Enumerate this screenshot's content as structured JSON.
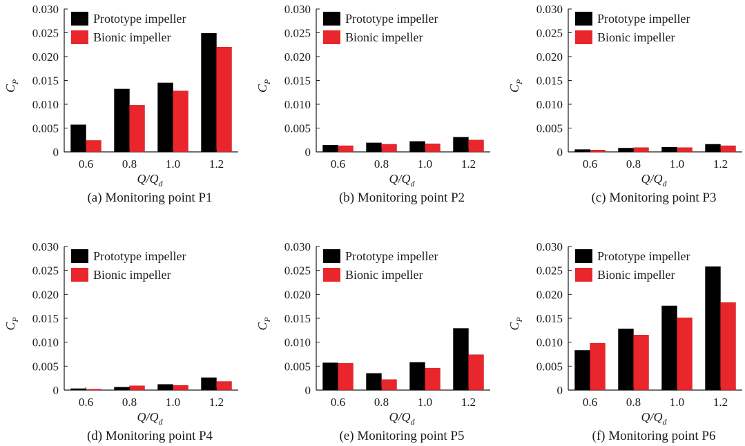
{
  "colors": {
    "prototype": "#000000",
    "bionic": "#e8262b",
    "axis": "#1a1a1a"
  },
  "chart_data": [
    {
      "type": "bar",
      "caption": "(a) Monitoring point P1",
      "xlabel": {
        "main": "Q/Q",
        "sub": "d"
      },
      "ylabel": {
        "main": "C",
        "sub": "P"
      },
      "categories": [
        "0.6",
        "0.8",
        "1.0",
        "1.2"
      ],
      "yticks": [
        "0",
        "0.005",
        "0.010",
        "0.015",
        "0.020",
        "0.025",
        "0.030"
      ],
      "ylim": [
        0,
        0.03
      ],
      "legend": "top-left",
      "grid": false,
      "series": [
        {
          "name": "Prototype impeller",
          "values": [
            0.0057,
            0.0132,
            0.0145,
            0.0249
          ]
        },
        {
          "name": "Bionic impeller",
          "values": [
            0.0024,
            0.0098,
            0.0128,
            0.022
          ]
        }
      ]
    },
    {
      "type": "bar",
      "caption": "(b) Monitoring point P2",
      "xlabel": {
        "main": "Q/Q",
        "sub": "d"
      },
      "ylabel": {
        "main": "C",
        "sub": "P"
      },
      "categories": [
        "0.6",
        "0.8",
        "1.0",
        "1.2"
      ],
      "yticks": [
        "0",
        "0.005",
        "0.010",
        "0.015",
        "0.020",
        "0.025",
        "0.030"
      ],
      "ylim": [
        0,
        0.03
      ],
      "legend": "top-left",
      "grid": false,
      "series": [
        {
          "name": "Prototype impeller",
          "values": [
            0.0014,
            0.0019,
            0.0022,
            0.0031
          ]
        },
        {
          "name": "Bionic impeller",
          "values": [
            0.0013,
            0.0016,
            0.0017,
            0.0025
          ]
        }
      ]
    },
    {
      "type": "bar",
      "caption": "(c) Monitoring point P3",
      "xlabel": {
        "main": "Q/Q",
        "sub": "d"
      },
      "ylabel": {
        "main": "C",
        "sub": "P"
      },
      "categories": [
        "0.6",
        "0.8",
        "1.0",
        "1.2"
      ],
      "yticks": [
        "0",
        "0.005",
        "0.010",
        "0.015",
        "0.020",
        "0.025",
        "0.030"
      ],
      "ylim": [
        0,
        0.03
      ],
      "legend": "top-left",
      "grid": false,
      "series": [
        {
          "name": "Prototype impeller",
          "values": [
            0.0005,
            0.0008,
            0.001,
            0.0016
          ]
        },
        {
          "name": "Bionic impeller",
          "values": [
            0.0004,
            0.0009,
            0.0009,
            0.0013
          ]
        }
      ]
    },
    {
      "type": "bar",
      "caption": "(d) Monitoring point P4",
      "xlabel": {
        "main": "Q/Q",
        "sub": "d"
      },
      "ylabel": {
        "main": "C",
        "sub": "P"
      },
      "categories": [
        "0.6",
        "0.8",
        "1.0",
        "1.2"
      ],
      "yticks": [
        "0",
        "0.005",
        "0.010",
        "0.015",
        "0.020",
        "0.025",
        "0.030"
      ],
      "ylim": [
        0,
        0.03
      ],
      "legend": "top-left",
      "grid": false,
      "series": [
        {
          "name": "Prototype impeller",
          "values": [
            0.0003,
            0.0006,
            0.0012,
            0.0026
          ]
        },
        {
          "name": "Bionic impeller",
          "values": [
            0.0002,
            0.0009,
            0.001,
            0.0018
          ]
        }
      ]
    },
    {
      "type": "bar",
      "caption": "(e) Monitoring point P5",
      "xlabel": {
        "main": "Q/Q",
        "sub": "d"
      },
      "ylabel": {
        "main": "C",
        "sub": "P"
      },
      "categories": [
        "0.6",
        "0.8",
        "1.0",
        "1.2"
      ],
      "yticks": [
        "0",
        "0.005",
        "0.010",
        "0.015",
        "0.020",
        "0.025",
        "0.030"
      ],
      "ylim": [
        0,
        0.03
      ],
      "legend": "top-left",
      "grid": false,
      "series": [
        {
          "name": "Prototype impeller",
          "values": [
            0.0057,
            0.0035,
            0.0058,
            0.0129
          ]
        },
        {
          "name": "Bionic impeller",
          "values": [
            0.0056,
            0.0022,
            0.0046,
            0.0074
          ]
        }
      ]
    },
    {
      "type": "bar",
      "caption": "(f) Monitoring point P6",
      "xlabel": {
        "main": "Q/Q",
        "sub": "d"
      },
      "ylabel": {
        "main": "C",
        "sub": "P"
      },
      "categories": [
        "0.6",
        "0.8",
        "1.0",
        "1.2"
      ],
      "yticks": [
        "0",
        "0.005",
        "0.010",
        "0.015",
        "0.020",
        "0.025",
        "0.030"
      ],
      "ylim": [
        0,
        0.03
      ],
      "legend": "top-left",
      "grid": false,
      "series": [
        {
          "name": "Prototype impeller",
          "values": [
            0.0083,
            0.0128,
            0.0176,
            0.0258
          ]
        },
        {
          "name": "Bionic impeller",
          "values": [
            0.0098,
            0.0115,
            0.0151,
            0.0183
          ]
        }
      ]
    }
  ]
}
